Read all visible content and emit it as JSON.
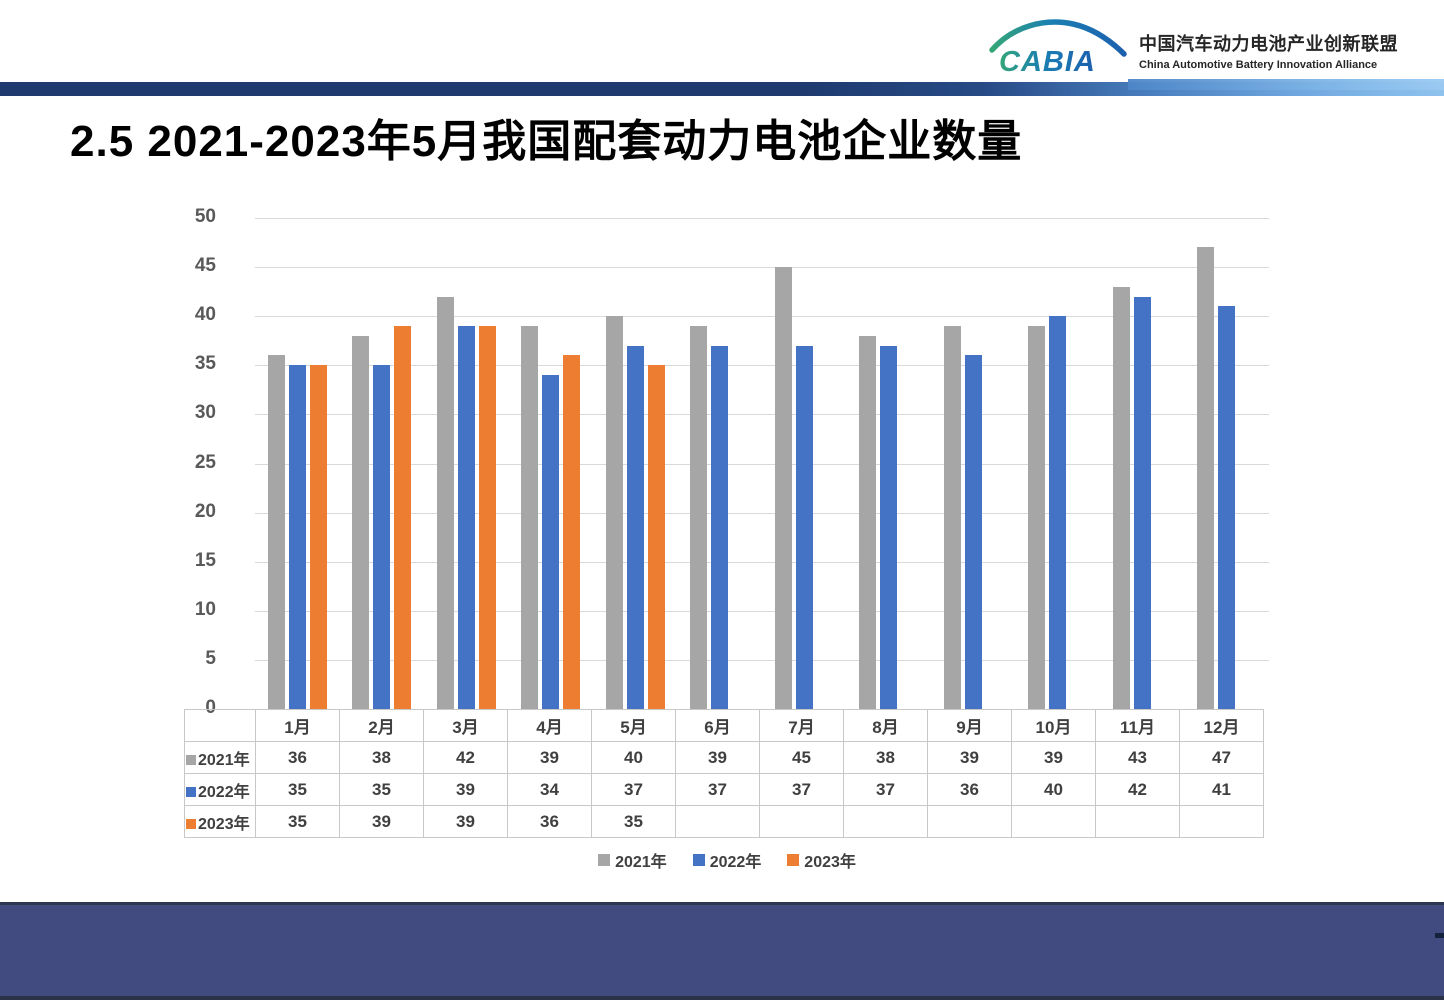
{
  "logo": {
    "mark_text": "CABIA",
    "cn_name": "中国汽车动力电池产业创新联盟",
    "en_name": "China Automotive Battery Innovation Alliance"
  },
  "title": "2.5 2021-2023年5月我国配套动力电池企业数量",
  "chart_data": {
    "type": "bar",
    "title": "2021-2023年5月我国配套动力电池企业数量",
    "categories": [
      "1月",
      "2月",
      "3月",
      "4月",
      "5月",
      "6月",
      "7月",
      "8月",
      "9月",
      "10月",
      "11月",
      "12月"
    ],
    "series": [
      {
        "name": "2021年",
        "color": "#A6A6A6",
        "values": [
          36,
          38,
          42,
          39,
          40,
          39,
          45,
          38,
          39,
          39,
          43,
          47
        ]
      },
      {
        "name": "2022年",
        "color": "#4472C4",
        "values": [
          35,
          35,
          39,
          34,
          37,
          37,
          37,
          37,
          36,
          40,
          42,
          41
        ]
      },
      {
        "name": "2023年",
        "color": "#ED7D31",
        "values": [
          35,
          39,
          39,
          36,
          35,
          null,
          null,
          null,
          null,
          null,
          null,
          null
        ]
      }
    ],
    "xlabel": "",
    "ylabel": "",
    "ylim": [
      0,
      50
    ],
    "ytick_step": 5,
    "grid": true,
    "legend_position": "bottom",
    "data_table_shown": true
  },
  "colors": {
    "grid": "#D9D9D9",
    "axis_text": "#595959",
    "table_text": "#404040",
    "table_border": "#C8C8C8",
    "ribbon_dark": "#1E3A6E",
    "ribbon_light": "#8FC3EE",
    "footer": "#414B7F"
  }
}
